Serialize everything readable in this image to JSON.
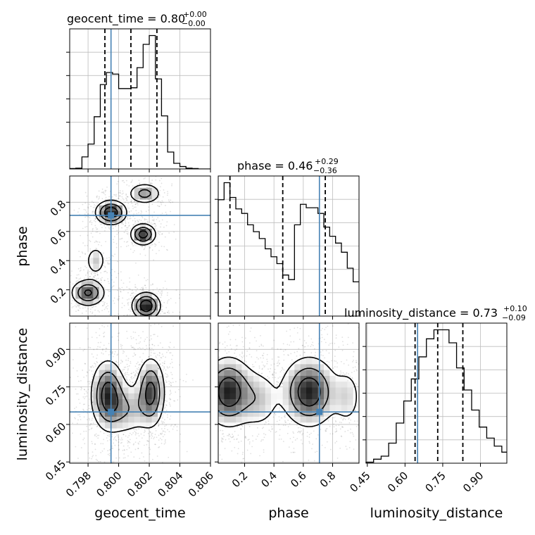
{
  "chart_data": {
    "type": "corner",
    "parameters": [
      "geocent_time",
      "phase",
      "luminosity_distance"
    ],
    "truth_color": "#4682b4",
    "truths": {
      "geocent_time": 0.7995,
      "phase": 0.71,
      "luminosity_distance": 0.65
    },
    "axes": {
      "geocent_time": {
        "range": [
          0.7968,
          0.806
        ],
        "ticks": [
          0.798,
          0.8,
          0.802,
          0.804,
          0.806
        ],
        "tick_labels": [
          "0.798",
          "0.800",
          "0.802",
          "0.804",
          "0.806"
        ],
        "xlabel": "geocent_time"
      },
      "phase": {
        "range": [
          0.02,
          0.98
        ],
        "ticks": [
          0.2,
          0.4,
          0.6,
          0.8
        ],
        "tick_labels": [
          "0.2",
          "0.4",
          "0.6",
          "0.8"
        ],
        "xlabel": "phase",
        "ylabel": "phase"
      },
      "luminosity_distance": {
        "range": [
          0.445,
          1.005
        ],
        "ticks": [
          0.45,
          0.6,
          0.75,
          0.9
        ],
        "tick_labels": [
          "0.45",
          "0.60",
          "0.75",
          "0.90"
        ],
        "xlabel": "luminosity_distance",
        "ylabel": "luminosity_distance"
      }
    },
    "titles": {
      "geocent_time": {
        "text": "geocent_time = 0.80",
        "plus": "+0.00",
        "minus": "−0.00"
      },
      "phase": {
        "text": "phase = 0.46",
        "plus": "+0.29",
        "minus": "−0.36"
      },
      "luminosity_distance": {
        "text": "luminosity_distance = 0.73",
        "plus": "+0.10",
        "minus": "−0.09"
      }
    },
    "histograms": {
      "geocent_time": {
        "edges": [
          0.7968,
          0.7972,
          0.7976,
          0.798,
          0.7984,
          0.7988,
          0.7992,
          0.7996,
          0.8,
          0.8004,
          0.8008,
          0.8012,
          0.8016,
          0.802,
          0.8024,
          0.8028,
          0.8032,
          0.8036,
          0.804,
          0.8044,
          0.8048,
          0.8052,
          0.8056,
          0.806
        ],
        "counts": [
          0.5,
          1,
          15,
          31,
          65,
          105,
          120,
          118,
          100,
          100,
          101,
          126,
          155,
          166,
          112,
          66,
          21,
          7,
          3,
          1,
          0.5,
          0,
          0
        ],
        "quantiles": [
          0.7991,
          0.8008,
          0.8025
        ]
      },
      "phase": {
        "edges": [
          0.02,
          0.06,
          0.1,
          0.14,
          0.18,
          0.22,
          0.26,
          0.3,
          0.34,
          0.38,
          0.42,
          0.46,
          0.5,
          0.54,
          0.58,
          0.62,
          0.66,
          0.7,
          0.74,
          0.78,
          0.82,
          0.86,
          0.9,
          0.94,
          0.98
        ],
        "counts": [
          102,
          117,
          104,
          94,
          90,
          80,
          74,
          68,
          59,
          52,
          46,
          36,
          32,
          80,
          98,
          95,
          95,
          90,
          78,
          70,
          64,
          56,
          42,
          30
        ],
        "quantiles": [
          0.1,
          0.46,
          0.75
        ]
      },
      "luminosity_distance": {
        "edges": [
          0.445,
          0.475,
          0.505,
          0.535,
          0.565,
          0.595,
          0.625,
          0.655,
          0.685,
          0.715,
          0.745,
          0.775,
          0.805,
          0.835,
          0.865,
          0.895,
          0.925,
          0.955,
          0.985,
          1.005
        ],
        "counts": [
          1,
          4,
          7,
          20,
          40,
          62,
          84,
          106,
          124,
          133,
          133,
          120,
          95,
          73,
          53,
          36,
          25,
          17,
          11
        ],
        "quantiles": [
          0.64,
          0.73,
          0.83
        ]
      }
    },
    "densities": {
      "phase_vs_geocent_time": {
        "blobs": [
          {
            "cx": 0.7995,
            "cy": 0.73,
            "sx": 0.00055,
            "sy": 0.045,
            "w": 1.0
          },
          {
            "cx": 0.8017,
            "cy": 0.86,
            "sx": 0.0006,
            "sy": 0.04,
            "w": 0.55
          },
          {
            "cx": 0.8016,
            "cy": 0.58,
            "sx": 0.00045,
            "sy": 0.04,
            "w": 0.9
          },
          {
            "cx": 0.7985,
            "cy": 0.4,
            "sx": 0.0004,
            "sy": 0.06,
            "w": 0.35
          },
          {
            "cx": 0.798,
            "cy": 0.18,
            "sx": 0.0006,
            "sy": 0.05,
            "w": 0.8
          },
          {
            "cx": 0.8018,
            "cy": 0.09,
            "sx": 0.0005,
            "sy": 0.05,
            "w": 1.0
          }
        ]
      },
      "luminosity_distance_vs_geocent_time": {
        "blobs": [
          {
            "cx": 0.7993,
            "cy": 0.72,
            "sx": 0.0006,
            "sy": 0.075,
            "w": 1.0
          },
          {
            "cx": 0.8021,
            "cy": 0.73,
            "sx": 0.0005,
            "sy": 0.075,
            "w": 0.95
          },
          {
            "cx": 0.8005,
            "cy": 0.66,
            "sx": 0.0009,
            "sy": 0.06,
            "w": 0.45
          }
        ]
      },
      "luminosity_distance_vs_phase": {
        "blobs": [
          {
            "cx": 0.09,
            "cy": 0.73,
            "sx": 0.09,
            "sy": 0.075,
            "w": 1.0
          },
          {
            "cx": 0.64,
            "cy": 0.73,
            "sx": 0.1,
            "sy": 0.075,
            "w": 1.0
          },
          {
            "cx": 0.3,
            "cy": 0.7,
            "sx": 0.08,
            "sy": 0.07,
            "w": 0.35
          },
          {
            "cx": 0.9,
            "cy": 0.71,
            "sx": 0.06,
            "sy": 0.07,
            "w": 0.3
          }
        ]
      }
    },
    "contour_levels": [
      0.18,
      0.45,
      0.75
    ]
  }
}
